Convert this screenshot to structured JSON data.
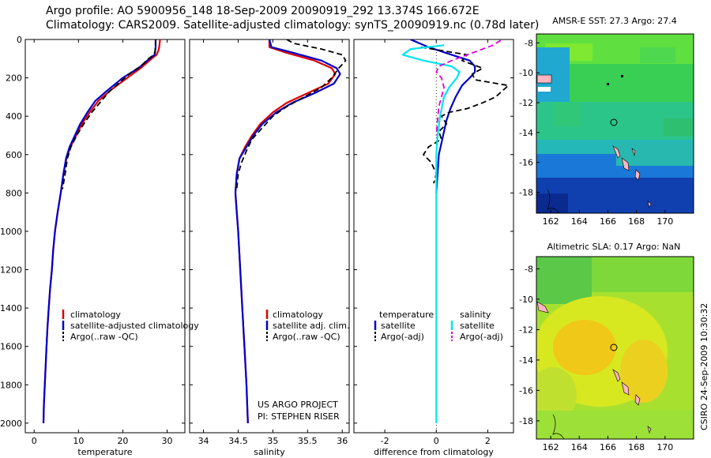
{
  "header": {
    "line1": "Argo profile: AO 5900956_148 18-Sep-2009 20090919_292 13.374S 166.672E",
    "line2": "Climatology: CARS2009. Satellite-adjusted climatology: synTS_20090919.nc (0.78d later)"
  },
  "side_stamp": "CSIRO 24-Sep-2009 10:30:32",
  "colors": {
    "climatology": "#dd0000",
    "satellite": "#0000cc",
    "argo": "#000000",
    "salinity_satellite": "#00e5ee",
    "salinity_argo": "#dd00dd"
  },
  "chart_data": [
    {
      "type": "line",
      "id": "temperature",
      "xlabel": "temperature",
      "ylabel": "",
      "xlim": [
        -2,
        34
      ],
      "ylim": [
        0,
        2050
      ],
      "y_reversed": true,
      "xticks": [
        0,
        10,
        20,
        30
      ],
      "yticks": [
        0,
        200,
        400,
        600,
        800,
        1000,
        1200,
        1400,
        1600,
        1800,
        2000
      ],
      "series": [
        {
          "name": "climatology",
          "style": "solid",
          "color": "#dd0000",
          "points": [
            [
              28.4,
              0
            ],
            [
              28.2,
              40
            ],
            [
              28.0,
              60
            ],
            [
              27.6,
              80
            ],
            [
              26.5,
              100
            ],
            [
              24.0,
              150
            ],
            [
              21.0,
              200
            ],
            [
              17.5,
              260
            ],
            [
              14.5,
              320
            ],
            [
              12.5,
              380
            ],
            [
              10.8,
              440
            ],
            [
              9.5,
              500
            ],
            [
              8.2,
              560
            ],
            [
              7.3,
              620
            ],
            [
              6.6,
              700
            ],
            [
              6.0,
              800
            ],
            [
              5.3,
              900
            ],
            [
              4.7,
              1000
            ],
            [
              4.3,
              1100
            ],
            [
              4.0,
              1200
            ],
            [
              3.6,
              1300
            ],
            [
              3.3,
              1400
            ],
            [
              3.0,
              1500
            ],
            [
              2.8,
              1600
            ],
            [
              2.6,
              1700
            ],
            [
              2.4,
              1800
            ],
            [
              2.2,
              1900
            ],
            [
              2.1,
              2000
            ]
          ]
        },
        {
          "name": "satellite-adjusted climatology",
          "style": "solid",
          "color": "#0000cc",
          "points": [
            [
              27.4,
              0
            ],
            [
              27.4,
              40
            ],
            [
              27.3,
              60
            ],
            [
              27.2,
              80
            ],
            [
              26.0,
              100
            ],
            [
              23.5,
              150
            ],
            [
              20.0,
              200
            ],
            [
              16.8,
              260
            ],
            [
              13.8,
              320
            ],
            [
              12.0,
              380
            ],
            [
              10.4,
              440
            ],
            [
              9.2,
              500
            ],
            [
              8.0,
              560
            ],
            [
              7.2,
              620
            ],
            [
              6.6,
              700
            ],
            [
              6.0,
              800
            ],
            [
              5.3,
              900
            ],
            [
              4.7,
              1000
            ],
            [
              4.3,
              1100
            ],
            [
              4.0,
              1200
            ],
            [
              3.6,
              1300
            ],
            [
              3.3,
              1400
            ],
            [
              3.0,
              1500
            ],
            [
              2.8,
              1600
            ],
            [
              2.6,
              1700
            ],
            [
              2.4,
              1800
            ],
            [
              2.2,
              1900
            ],
            [
              2.1,
              2000
            ]
          ]
        },
        {
          "name": "Argo(..raw -QC)",
          "style": "dashed",
          "color": "#000000",
          "points": [
            [
              27.4,
              0
            ],
            [
              27.3,
              60
            ],
            [
              27.0,
              80
            ],
            [
              25.8,
              100
            ],
            [
              24.0,
              140
            ],
            [
              22.0,
              170
            ],
            [
              19.5,
              220
            ],
            [
              17.0,
              270
            ],
            [
              15.2,
              320
            ],
            [
              13.0,
              380
            ],
            [
              11.2,
              440
            ],
            [
              9.6,
              500
            ],
            [
              8.3,
              560
            ],
            [
              7.5,
              620
            ],
            [
              7.0,
              700
            ],
            [
              6.4,
              780
            ]
          ]
        }
      ]
    },
    {
      "type": "line",
      "id": "salinity",
      "xlabel": "salinity",
      "ylabel": "",
      "xlim": [
        33.8,
        36.1
      ],
      "ylim": [
        0,
        2050
      ],
      "y_reversed": true,
      "xticks": [
        34,
        34.5,
        35,
        35.5,
        36
      ],
      "series": [
        {
          "name": "climatology",
          "style": "solid",
          "color": "#dd0000",
          "points": [
            [
              34.95,
              0
            ],
            [
              34.95,
              40
            ],
            [
              35.2,
              70
            ],
            [
              35.6,
              110
            ],
            [
              35.85,
              150
            ],
            [
              35.9,
              180
            ],
            [
              35.8,
              230
            ],
            [
              35.5,
              280
            ],
            [
              35.2,
              330
            ],
            [
              35.0,
              380
            ],
            [
              34.82,
              440
            ],
            [
              34.7,
              500
            ],
            [
              34.6,
              560
            ],
            [
              34.52,
              620
            ],
            [
              34.48,
              700
            ],
            [
              34.46,
              800
            ],
            [
              34.48,
              900
            ],
            [
              34.5,
              1000
            ],
            [
              34.53,
              1200
            ],
            [
              34.56,
              1400
            ],
            [
              34.59,
              1600
            ],
            [
              34.62,
              1800
            ],
            [
              34.64,
              2000
            ]
          ]
        },
        {
          "name": "satellite adj. clim.",
          "style": "solid",
          "color": "#0000cc",
          "points": [
            [
              34.95,
              0
            ],
            [
              34.98,
              40
            ],
            [
              35.3,
              70
            ],
            [
              35.7,
              110
            ],
            [
              35.92,
              150
            ],
            [
              35.97,
              180
            ],
            [
              35.88,
              230
            ],
            [
              35.6,
              280
            ],
            [
              35.28,
              330
            ],
            [
              35.05,
              380
            ],
            [
              34.85,
              440
            ],
            [
              34.72,
              500
            ],
            [
              34.62,
              560
            ],
            [
              34.52,
              620
            ],
            [
              34.48,
              700
            ],
            [
              34.46,
              800
            ],
            [
              34.48,
              900
            ],
            [
              34.5,
              1000
            ],
            [
              34.53,
              1200
            ],
            [
              34.56,
              1400
            ],
            [
              34.59,
              1600
            ],
            [
              34.62,
              1800
            ],
            [
              34.64,
              2000
            ]
          ]
        },
        {
          "name": "Argo(..raw -QC)",
          "style": "dashed",
          "color": "#000000",
          "points": [
            [
              35.2,
              0
            ],
            [
              35.3,
              20
            ],
            [
              35.7,
              50
            ],
            [
              36.0,
              80
            ],
            [
              36.05,
              110
            ],
            [
              35.95,
              150
            ],
            [
              35.85,
              200
            ],
            [
              35.7,
              250
            ],
            [
              35.45,
              300
            ],
            [
              35.2,
              350
            ],
            [
              35.0,
              400
            ],
            [
              34.85,
              460
            ],
            [
              34.7,
              520
            ],
            [
              34.62,
              580
            ],
            [
              34.55,
              640
            ],
            [
              34.5,
              700
            ],
            [
              34.48,
              780
            ]
          ]
        }
      ]
    },
    {
      "type": "line",
      "id": "difference",
      "xlabel": "difference from climatology",
      "ylabel": "",
      "xlim": [
        -3.2,
        3.0
      ],
      "ylim": [
        0,
        2050
      ],
      "y_reversed": true,
      "xticks": [
        -2,
        0,
        2
      ],
      "zero_line": 0,
      "legend_headers": [
        "temperature",
        "salinity"
      ],
      "series": [
        {
          "name": "satellite",
          "group": "temperature",
          "style": "solid",
          "color": "#0000cc",
          "points": [
            [
              -1.0,
              0
            ],
            [
              -0.3,
              40
            ],
            [
              0.6,
              80
            ],
            [
              1.3,
              110
            ],
            [
              1.5,
              140
            ],
            [
              1.5,
              170
            ],
            [
              1.3,
              200
            ],
            [
              1.0,
              240
            ],
            [
              0.75,
              300
            ],
            [
              0.55,
              360
            ],
            [
              0.4,
              420
            ],
            [
              0.3,
              480
            ],
            [
              0.2,
              540
            ],
            [
              0.1,
              600
            ],
            [
              0.05,
              700
            ],
            [
              0.0,
              800
            ]
          ]
        },
        {
          "name": "Argo(-adj)",
          "group": "temperature",
          "style": "dashed",
          "color": "#000000",
          "points": [
            [
              -0.6,
              40
            ],
            [
              1.2,
              80
            ],
            [
              1.0,
              110
            ],
            [
              1.8,
              150
            ],
            [
              1.4,
              180
            ],
            [
              1.5,
              210
            ],
            [
              2.8,
              240
            ],
            [
              2.3,
              300
            ],
            [
              1.8,
              330
            ],
            [
              1.2,
              360
            ],
            [
              0.5,
              380
            ],
            [
              0.2,
              400
            ],
            [
              0.4,
              440
            ],
            [
              0.1,
              480
            ],
            [
              0.2,
              520
            ],
            [
              -0.3,
              560
            ],
            [
              -0.5,
              600
            ],
            [
              -0.2,
              640
            ],
            [
              0.0,
              700
            ],
            [
              -0.1,
              750
            ]
          ]
        },
        {
          "name": "satellite",
          "group": "salinity",
          "style": "solid",
          "color": "#00e5ee",
          "points": [
            [
              0.3,
              30
            ],
            [
              -1.0,
              50
            ],
            [
              -1.3,
              80
            ],
            [
              -0.5,
              110
            ],
            [
              0.6,
              140
            ],
            [
              0.9,
              170
            ],
            [
              0.8,
              200
            ],
            [
              0.5,
              250
            ],
            [
              0.3,
              300
            ],
            [
              0.15,
              400
            ],
            [
              0.05,
              500
            ],
            [
              0.0,
              600
            ],
            [
              0.0,
              800
            ],
            [
              0.0,
              1000
            ],
            [
              0.0,
              1200
            ],
            [
              0.0,
              1500
            ],
            [
              0.0,
              1800
            ],
            [
              0.0,
              2000
            ]
          ]
        },
        {
          "name": "Argo(-adj)",
          "group": "salinity",
          "style": "dashed",
          "color": "#dd00dd",
          "points": [
            [
              2.5,
              5
            ],
            [
              2.2,
              30
            ],
            [
              1.2,
              80
            ],
            [
              0.6,
              110
            ],
            [
              0.1,
              140
            ],
            [
              0.0,
              170
            ],
            [
              0.2,
              200
            ],
            [
              0.3,
              250
            ],
            [
              0.2,
              300
            ],
            [
              0.1,
              350
            ],
            [
              0.05,
              420
            ],
            [
              0.0,
              500
            ]
          ]
        }
      ]
    }
  ],
  "panels": {
    "temperature_legend": [
      {
        "label": "climatology",
        "color": "#dd0000"
      },
      {
        "label": "satellite-adjusted climatology",
        "color": "#0000cc"
      },
      {
        "label": "Argo(..raw -QC)",
        "color": "#000000"
      }
    ],
    "salinity_legend": [
      {
        "label": "climatology",
        "color": "#dd0000"
      },
      {
        "label": "satellite adj. clim.",
        "color": "#0000cc"
      },
      {
        "label": "Argo(..raw -QC)",
        "color": "#000000"
      }
    ],
    "diff_legend": {
      "headers": [
        "temperature",
        "salinity"
      ],
      "temperature": [
        {
          "label": "satellite",
          "color": "#0000cc"
        },
        {
          "label": "Argo(-adj)",
          "color": "#000000"
        }
      ],
      "salinity": [
        {
          "label": "satellite",
          "color": "#00e5ee"
        },
        {
          "label": "Argo(-adj)",
          "color": "#dd00dd"
        }
      ]
    },
    "project_note": [
      "US ARGO PROJECT",
      "PI: STEPHEN RISER"
    ]
  },
  "maps": [
    {
      "id": "sst",
      "title": "AMSR-E SST: 27.3 Argo: 27.4",
      "xticks": [
        162,
        164,
        166,
        168,
        170
      ],
      "yticks": [
        -8,
        -10,
        -12,
        -14,
        -16,
        -18
      ]
    },
    {
      "id": "sla",
      "title": "Altimetric SLA: 0.17 Argo: NaN",
      "xticks": [
        162,
        164,
        166,
        168,
        170
      ],
      "yticks": [
        -8,
        -10,
        -12,
        -14,
        -16,
        -18
      ]
    }
  ]
}
